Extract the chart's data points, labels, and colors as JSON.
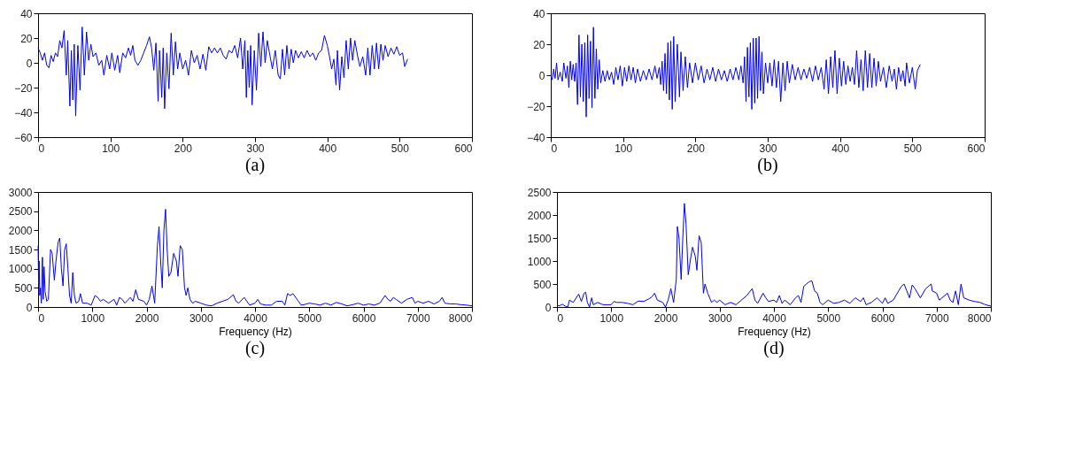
{
  "chart_data": [
    {
      "type": "line",
      "annotations": [
        "(a)"
      ],
      "xlim": [
        0,
        600
      ],
      "ylim": [
        -60,
        40
      ],
      "xticks": [
        0,
        100,
        200,
        300,
        400,
        500,
        600
      ],
      "yticks": [
        -60,
        -40,
        -20,
        0,
        20,
        40
      ],
      "grid": false,
      "x": [
        0,
        3,
        6,
        9,
        12,
        15,
        18,
        21,
        24,
        27,
        30,
        33,
        36,
        39,
        41,
        44,
        46,
        48,
        50,
        52,
        55,
        58,
        61,
        64,
        67,
        70,
        73,
        76,
        80,
        84,
        88,
        91,
        95,
        99,
        102,
        106,
        110,
        113,
        117,
        121,
        125,
        128,
        131,
        134,
        138,
        142,
        146,
        150,
        154,
        157,
        160,
        163,
        166,
        168,
        171,
        173,
        175,
        178,
        181,
        184,
        187,
        190,
        193,
        196,
        200,
        204,
        208,
        212,
        216,
        220,
        224,
        228,
        232,
        236,
        240,
        244,
        248,
        252,
        256,
        260,
        264,
        268,
        272,
        276,
        280,
        283,
        286,
        288,
        290,
        292,
        294,
        296,
        299,
        302,
        305,
        308,
        311,
        314,
        317,
        320,
        324,
        328,
        332,
        335,
        338,
        341,
        344,
        347,
        350,
        353,
        356,
        360,
        364,
        368,
        372,
        376,
        380,
        384,
        388,
        392,
        396,
        400,
        403,
        406,
        409,
        412,
        414,
        417,
        420,
        423,
        426,
        429,
        432,
        435,
        438,
        442,
        445,
        449,
        453,
        456,
        459,
        462,
        465,
        468,
        471,
        474,
        477,
        480,
        484,
        488,
        492,
        496,
        500,
        504,
        507,
        511
      ],
      "series": [
        {
          "color": "#0000ff",
          "values": [
            12,
            8,
            2,
            8,
            -2,
            -4,
            6,
            1,
            8,
            5,
            18,
            12,
            26,
            -10,
            18,
            -35,
            10,
            -30,
            15,
            -43,
            14,
            -22,
            29,
            -10,
            25,
            2,
            15,
            5,
            8,
            -2,
            2,
            -10,
            6,
            -5,
            8,
            -6,
            6,
            -8,
            8,
            4,
            12,
            6,
            14,
            2,
            -2,
            2,
            8,
            14,
            21,
            12,
            -6,
            16,
            -31,
            10,
            -28,
            12,
            -37,
            8,
            -21,
            24,
            -10,
            17,
            -5,
            8,
            -5,
            2,
            -10,
            10,
            0,
            6,
            -5,
            7,
            -6,
            13,
            8,
            12,
            8,
            12,
            6,
            3,
            10,
            8,
            14,
            4,
            20,
            -5,
            18,
            -28,
            10,
            -20,
            14,
            -34,
            10,
            -22,
            24,
            -3,
            25,
            0,
            18,
            8,
            -5,
            10,
            -10,
            -13,
            11,
            -10,
            14,
            -5,
            11,
            0,
            10,
            4,
            9,
            4,
            10,
            5,
            8,
            2,
            8,
            10,
            22,
            14,
            5,
            -5,
            3,
            -18,
            10,
            -22,
            5,
            -12,
            18,
            -5,
            20,
            2,
            18,
            5,
            -3,
            5,
            -10,
            12,
            -10,
            14,
            -5,
            16,
            -5,
            15,
            2,
            14,
            5,
            12,
            7,
            13,
            6,
            8,
            -3,
            3
          ]
        }
      ]
    },
    {
      "type": "line",
      "annotations": [
        "(b)"
      ],
      "xlim": [
        0,
        600
      ],
      "ylim": [
        -40,
        40
      ],
      "xticks": [
        0,
        100,
        200,
        300,
        400,
        500,
        600
      ],
      "yticks": [
        -40,
        -20,
        0,
        20,
        40
      ],
      "grid": false,
      "x": [
        0,
        2,
        4,
        6,
        8,
        10,
        13,
        16,
        18,
        21,
        23,
        25,
        27,
        29,
        31,
        33,
        35,
        37,
        39,
        41,
        43,
        45,
        47,
        49,
        51,
        53,
        55,
        57,
        59,
        61,
        63,
        65,
        67,
        69,
        72,
        75,
        78,
        81,
        84,
        87,
        90,
        93,
        96,
        99,
        102,
        105,
        108,
        111,
        114,
        117,
        120,
        124,
        128,
        132,
        136,
        140,
        144,
        147,
        150,
        152,
        154,
        156,
        158,
        160,
        162,
        164,
        166,
        168,
        170,
        172,
        175,
        178,
        180,
        183,
        186,
        189,
        192,
        196,
        200,
        204,
        208,
        212,
        216,
        220,
        224,
        228,
        232,
        236,
        240,
        244,
        248,
        252,
        256,
        260,
        263,
        266,
        268,
        270,
        272,
        274,
        276,
        278,
        280,
        282,
        284,
        286,
        288,
        290,
        292,
        294,
        297,
        300,
        303,
        306,
        309,
        312,
        315,
        318,
        321,
        324,
        327,
        330,
        334,
        338,
        342,
        346,
        350,
        354,
        358,
        362,
        366,
        370,
        374,
        378,
        381,
        384,
        387,
        390,
        393,
        396,
        399,
        402,
        405,
        408,
        411,
        414,
        417,
        420,
        423,
        426,
        429,
        432,
        435,
        438,
        441,
        444,
        447,
        450,
        453,
        456,
        460,
        464,
        468,
        472,
        475,
        478,
        481,
        484,
        487,
        490,
        492,
        496,
        500,
        504,
        507,
        511
      ],
      "series": [
        {
          "color": "#0000ff",
          "values": [
            0,
            -3,
            4,
            -2,
            8,
            -3,
            2,
            -4,
            8,
            -2,
            6,
            -8,
            9,
            -3,
            7,
            -4,
            8,
            -19,
            26,
            -14,
            20,
            -17,
            21,
            -27,
            26,
            -15,
            22,
            -21,
            31,
            -15,
            17,
            -9,
            10,
            -5,
            3,
            -4,
            3,
            -3,
            2,
            -6,
            5,
            -3,
            6,
            -7,
            5,
            -4,
            6,
            -3,
            5,
            -5,
            4,
            -4,
            3,
            -3,
            4,
            -3,
            6,
            -2,
            5,
            -6,
            9,
            -10,
            14,
            -12,
            21,
            -16,
            22,
            -22,
            25,
            -17,
            20,
            -14,
            15,
            -10,
            12,
            -8,
            8,
            -5,
            8,
            -3,
            6,
            -5,
            4,
            -3,
            5,
            -4,
            4,
            -3,
            3,
            -4,
            4,
            -3,
            5,
            -3,
            6,
            -5,
            12,
            -17,
            18,
            -14,
            21,
            -22,
            24,
            -18,
            24,
            -15,
            25,
            -10,
            15,
            -12,
            8,
            -5,
            8,
            -7,
            10,
            -8,
            9,
            -17,
            8,
            -10,
            9,
            -5,
            7,
            -3,
            5,
            -3,
            4,
            -2,
            5,
            -4,
            6,
            -3,
            5,
            -9,
            10,
            -12,
            12,
            -8,
            16,
            -12,
            11,
            -7,
            9,
            -6,
            6,
            -4,
            5,
            -6,
            16,
            -8,
            10,
            -10,
            16,
            -8,
            14,
            -8,
            11,
            -7,
            9,
            -4,
            5,
            -8,
            6,
            -4,
            4,
            -9,
            5,
            -4,
            3,
            -7,
            8,
            -5,
            5,
            -9,
            3,
            7
          ]
        }
      ]
    },
    {
      "type": "line",
      "annotations": [
        "(c)"
      ],
      "xlabel": "Frequency (Hz)",
      "xlim": [
        0,
        8000
      ],
      "ylim": [
        0,
        3000
      ],
      "xticks": [
        0,
        1000,
        2000,
        3000,
        4000,
        5000,
        6000,
        7000,
        8000
      ],
      "yticks": [
        0,
        500,
        1000,
        1500,
        2000,
        2500,
        3000
      ],
      "grid": false,
      "x": [
        0,
        10,
        20,
        30,
        45,
        60,
        80,
        95,
        110,
        130,
        160,
        190,
        230,
        260,
        300,
        330,
        370,
        400,
        430,
        460,
        490,
        520,
        550,
        580,
        610,
        640,
        670,
        700,
        750,
        780,
        820,
        900,
        980,
        1050,
        1100,
        1150,
        1200,
        1300,
        1400,
        1450,
        1500,
        1550,
        1600,
        1700,
        1750,
        1800,
        1850,
        1950,
        2000,
        2050,
        2100,
        2150,
        2200,
        2230,
        2260,
        2290,
        2320,
        2350,
        2380,
        2410,
        2450,
        2500,
        2550,
        2580,
        2620,
        2660,
        2700,
        2730,
        2760,
        2800,
        2850,
        2900,
        3000,
        3100,
        3200,
        3300,
        3400,
        3500,
        3600,
        3650,
        3700,
        3800,
        3850,
        3900,
        4000,
        4050,
        4100,
        4200,
        4300,
        4400,
        4500,
        4550,
        4600,
        4650,
        4700,
        4750,
        4800,
        4850,
        4900,
        5000,
        5100,
        5200,
        5300,
        5400,
        5500,
        5600,
        5700,
        5800,
        5900,
        6000,
        6100,
        6200,
        6300,
        6400,
        6450,
        6500,
        6550,
        6600,
        6700,
        6800,
        6900,
        6950,
        7000,
        7100,
        7200,
        7300,
        7400,
        7450,
        7500,
        7600,
        7700,
        7800,
        7900,
        8000
      ],
      "series": [
        {
          "color": "#0000ff",
          "values": [
            1600,
            600,
            1200,
            300,
            500,
            100,
            1300,
            200,
            1050,
            400,
            150,
            200,
            1500,
            1400,
            700,
            1200,
            1700,
            1800,
            1000,
            550,
            1500,
            1650,
            1000,
            300,
            100,
            900,
            300,
            100,
            150,
            350,
            100,
            100,
            50,
            300,
            250,
            150,
            200,
            100,
            200,
            50,
            250,
            200,
            100,
            250,
            150,
            450,
            200,
            150,
            50,
            200,
            550,
            100,
            1600,
            2100,
            1200,
            500,
            2000,
            2550,
            1500,
            800,
            900,
            1400,
            1200,
            800,
            1600,
            1500,
            500,
            300,
            500,
            200,
            100,
            150,
            100,
            50,
            30,
            100,
            150,
            200,
            320,
            150,
            100,
            250,
            150,
            50,
            100,
            200,
            80,
            50,
            50,
            150,
            150,
            50,
            350,
            300,
            350,
            250,
            150,
            50,
            60,
            100,
            80,
            50,
            100,
            50,
            120,
            80,
            30,
            60,
            100,
            50,
            80,
            50,
            100,
            300,
            200,
            150,
            250,
            200,
            100,
            200,
            250,
            100,
            150,
            100,
            150,
            80,
            150,
            250,
            100,
            80,
            80,
            60,
            50,
            30
          ]
        }
      ]
    },
    {
      "type": "line",
      "annotations": [
        "(d)"
      ],
      "xlabel": "Frequency (Hz)",
      "xlim": [
        0,
        8000
      ],
      "ylim": [
        0,
        2500
      ],
      "xticks": [
        0,
        1000,
        2000,
        3000,
        4000,
        5000,
        6000,
        7000,
        8000
      ],
      "yticks": [
        0,
        500,
        1000,
        1500,
        2000,
        2500
      ],
      "grid": false,
      "x": [
        0,
        50,
        100,
        150,
        200,
        230,
        300,
        400,
        450,
        500,
        530,
        560,
        600,
        640,
        670,
        750,
        850,
        1000,
        1050,
        1100,
        1200,
        1300,
        1400,
        1500,
        1600,
        1700,
        1750,
        1800,
        1850,
        1950,
        2000,
        2050,
        2100,
        2150,
        2200,
        2220,
        2250,
        2290,
        2320,
        2350,
        2380,
        2420,
        2470,
        2500,
        2550,
        2580,
        2620,
        2660,
        2700,
        2730,
        2780,
        2850,
        2900,
        2950,
        3000,
        3100,
        3200,
        3300,
        3400,
        3500,
        3600,
        3650,
        3700,
        3800,
        3850,
        3900,
        4000,
        4050,
        4100,
        4150,
        4200,
        4300,
        4400,
        4450,
        4500,
        4550,
        4600,
        4650,
        4700,
        4750,
        4800,
        4850,
        4900,
        5000,
        5100,
        5200,
        5300,
        5400,
        5500,
        5600,
        5650,
        5700,
        5800,
        5900,
        6000,
        6050,
        6100,
        6200,
        6300,
        6350,
        6400,
        6450,
        6500,
        6550,
        6600,
        6700,
        6800,
        6900,
        6920,
        7000,
        7050,
        7100,
        7200,
        7250,
        7300,
        7350,
        7400,
        7450,
        7500,
        7600,
        7700,
        7800,
        7900,
        8000
      ],
      "series": [
        {
          "color": "#0000ff",
          "values": [
            30,
            30,
            60,
            20,
            0,
            150,
            100,
            280,
            120,
            300,
            320,
            100,
            0,
            200,
            50,
            100,
            50,
            50,
            120,
            100,
            100,
            80,
            50,
            130,
            120,
            180,
            220,
            300,
            150,
            100,
            0,
            150,
            400,
            100,
            600,
            1750,
            1500,
            600,
            1500,
            2250,
            1800,
            700,
            1100,
            1300,
            1100,
            800,
            1550,
            1400,
            300,
            500,
            300,
            100,
            150,
            100,
            150,
            50,
            100,
            50,
            150,
            250,
            400,
            150,
            80,
            300,
            200,
            120,
            150,
            100,
            250,
            80,
            150,
            50,
            200,
            250,
            100,
            450,
            500,
            550,
            570,
            350,
            300,
            100,
            50,
            150,
            80,
            100,
            150,
            80,
            200,
            120,
            200,
            50,
            100,
            200,
            80,
            200,
            80,
            150,
            350,
            450,
            500,
            350,
            200,
            480,
            400,
            200,
            400,
            500,
            350,
            300,
            150,
            200,
            300,
            150,
            100,
            350,
            50,
            500,
            200,
            150,
            120,
            100,
            50,
            20
          ]
        }
      ]
    }
  ]
}
